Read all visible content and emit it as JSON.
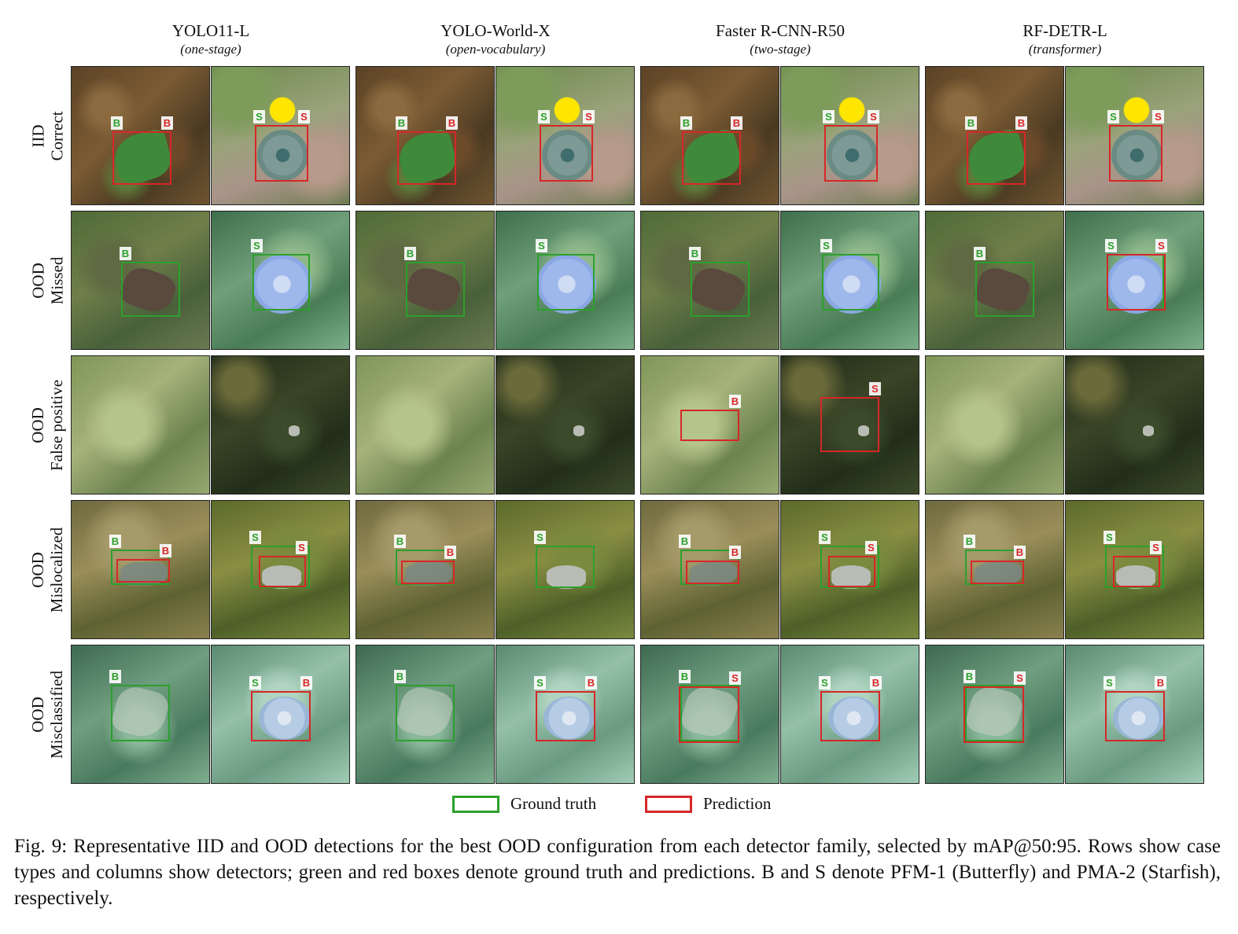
{
  "columns": [
    {
      "title": "YOLO11-L",
      "subtitle": "(one-stage)"
    },
    {
      "title": "YOLO-World-X",
      "subtitle": "(open-vocabulary)"
    },
    {
      "title": "Faster R-CNN-R50",
      "subtitle": "(two-stage)"
    },
    {
      "title": "RF-DETR-L",
      "subtitle": "(transformer)"
    }
  ],
  "rows": [
    {
      "line1": "IID",
      "line2": "Correct"
    },
    {
      "line1": "OOD",
      "line2": "Missed"
    },
    {
      "line1": "OOD",
      "line2": "False positive"
    },
    {
      "line1": "OOD",
      "line2": "Mislocalized"
    },
    {
      "line1": "OOD",
      "line2": "Misclassified"
    }
  ],
  "class_tags": {
    "butterfly": "B",
    "starfish": "S"
  },
  "legend": {
    "ground_truth": "Ground truth",
    "prediction": "Prediction"
  },
  "colors": {
    "ground_truth": "#2ca02c",
    "prediction": "#d62728"
  },
  "caption": "Fig. 9: Representative IID and OOD detections for the best OOD configuration from each detector family, selected by mAP@50:95. Rows show case types and columns show detectors; green and red boxes denote ground truth and predictions. B and S denote PFM-1 (Butterfly) and PMA-2 (Starfish), respectively."
}
